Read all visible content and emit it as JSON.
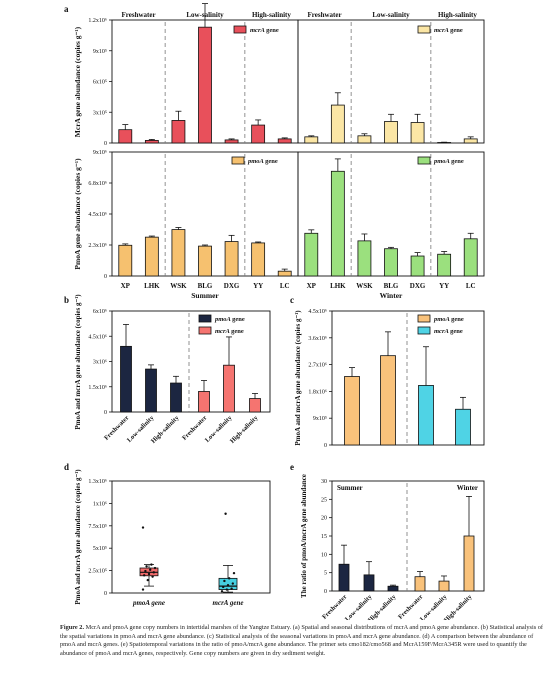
{
  "figure": {
    "caption": {
      "label": "Figure 2.",
      "text": "McrA and pmoA gene copy numbers in intertidal marshes of the Yangtze Estuary. (a) Spatial and seasonal distributions of mcrA and pmoA gene abundance. (b) Statistical analysis of the spatial variations in pmoA and mcrA gene abundance. (c) Statistical analysis of the seasonal variations in pmoA and mcrA gene abundance. (d) A comparison between the abundance of pmoA and mcrA genes. (e) Spatiotemporal variations in the ratio of pmoA/mcrA gene abundance. The primer sets cmo182/cmo568 and McrA159F/McrA345R were used to quantify the abundance of pmoA and mcrA genes, respectively. Gene copy numbers are given in dry sediment weight."
    },
    "colors": {
      "mcrA_summer": "#e8505b",
      "mcrA_winter": "#fbe6a5",
      "pmoA_summer": "#f6c16f",
      "pmoA_winter": "#9be07e",
      "navy": "#1c2641",
      "salmon": "#f57470",
      "cyan": "#4fd3e5",
      "pink_box": "#f06a6a",
      "cyan_box": "#46cfe0",
      "orange_c": "#f9c27b"
    }
  },
  "chart_data": [
    {
      "panel": "a",
      "type": "bar",
      "subpanel": "mcrA summer",
      "categories": [
        "XP",
        "LHK",
        "WSK",
        "BLG",
        "DXG",
        "YY",
        "LC"
      ],
      "values": [
        130000,
        25000,
        220000,
        1130000,
        30000,
        175000,
        40000
      ],
      "errors": [
        50000,
        10000,
        90000,
        230000,
        10000,
        50000,
        10000
      ],
      "series_name": "mcrA gene",
      "ylabel": "McrA gene abundance (copies g⁻¹)",
      "yticks": [
        "0",
        "3x10⁵",
        "6x10⁵",
        "9x10⁵",
        "1.2x10⁶"
      ],
      "ylim": [
        0,
        1200000
      ],
      "group_labels": [
        "Freshwater",
        "Low-salinity",
        "High-salinity"
      ]
    },
    {
      "panel": "a",
      "type": "bar",
      "subpanel": "mcrA winter",
      "categories": [
        "XP",
        "LHK",
        "WSK",
        "BLG",
        "DXG",
        "YY",
        "LC"
      ],
      "values": [
        60000,
        370000,
        70000,
        210000,
        200000,
        5000,
        40000
      ],
      "errors": [
        10000,
        120000,
        20000,
        70000,
        80000,
        3000,
        20000
      ],
      "series_name": "mcrA gene",
      "ylim": [
        0,
        1200000
      ],
      "group_labels": [
        "Freshwater",
        "Low-salinity",
        "High-salinity"
      ]
    },
    {
      "panel": "a",
      "type": "bar",
      "subpanel": "pmoA summer",
      "categories": [
        "XP",
        "LHK",
        "WSK",
        "BLG",
        "DXG",
        "YY",
        "LC"
      ],
      "values": [
        2230000,
        2820000,
        3370000,
        2170000,
        2500000,
        2400000,
        350000
      ],
      "errors": [
        100000,
        80000,
        150000,
        80000,
        450000,
        70000,
        150000
      ],
      "series_name": "pmoA gene",
      "ylabel": "PmoA gene abundance (copies g⁻¹)",
      "yticks": [
        "0",
        "2.3x10⁶",
        "4.5x10⁶",
        "6.8x10⁶",
        "9x10⁶"
      ],
      "ylim": [
        0,
        9000000
      ],
      "xlabel": "Summer"
    },
    {
      "panel": "a",
      "type": "bar",
      "subpanel": "pmoA winter",
      "categories": [
        "XP",
        "LHK",
        "WSK",
        "BLG",
        "DXG",
        "YY",
        "LC"
      ],
      "values": [
        3100000,
        7600000,
        2550000,
        1980000,
        1450000,
        1580000,
        2700000
      ],
      "errors": [
        250000,
        900000,
        500000,
        100000,
        250000,
        200000,
        400000
      ],
      "series_name": "pmoA gene",
      "ylim": [
        0,
        9000000
      ],
      "xlabel": "Winter"
    },
    {
      "panel": "b",
      "type": "bar",
      "categories": [
        "Freshwater",
        "Low-salinity",
        "High-salinity",
        "Freshwater",
        "Low-salinity",
        "High-salinity"
      ],
      "values": [
        3900000,
        2550000,
        1720000,
        1220000,
        2780000,
        800000
      ],
      "errors": [
        1300000,
        250000,
        400000,
        650000,
        1680000,
        300000
      ],
      "series": [
        {
          "name": "pmoA gene",
          "indices": [
            0,
            1,
            2
          ]
        },
        {
          "name": "mcrA gene",
          "indices": [
            3,
            4,
            5
          ]
        }
      ],
      "ylabel": "PmoA and mcrA gene abundance (copies g⁻¹)",
      "yticks": [
        "0",
        "1.5x10⁶",
        "3x10⁶",
        "4.5x10⁶",
        "6x10⁶"
      ],
      "ylim": [
        0,
        6000000
      ]
    },
    {
      "panel": "c",
      "type": "bar",
      "values": [
        2300000,
        3000000,
        2000000,
        1200000
      ],
      "errors": [
        300000,
        800000,
        1300000,
        400000
      ],
      "series": [
        {
          "name": "pmoA gene",
          "indices": [
            0,
            1
          ]
        },
        {
          "name": "mcrA gene",
          "indices": [
            2,
            3
          ]
        }
      ],
      "ylabel": "PmoA and mcrA gene abundance (copies g⁻¹)",
      "yticks": [
        "0",
        "9x10⁵",
        "1.8x10⁶",
        "2.7x10⁶",
        "3.6x10⁶",
        "4.5x10⁶"
      ],
      "ylim": [
        0,
        4500000
      ]
    },
    {
      "panel": "d",
      "type": "box",
      "categories": [
        "pmoA gene",
        "mcrA gene"
      ],
      "boxes": [
        {
          "min": 80000,
          "q1": 200000,
          "median": 240000,
          "q3": 290000,
          "max": 330000,
          "points": [
            40000,
            150000,
            190000,
            205000,
            220000,
            240000,
            255000,
            270000,
            290000,
            310000,
            330000,
            760000
          ]
        },
        {
          "min": 10000,
          "q1": 40000,
          "median": 80000,
          "q3": 170000,
          "max": 320000,
          "points": [
            20000,
            40000,
            50000,
            70000,
            90000,
            110000,
            140000,
            170000,
            230000,
            920000
          ]
        }
      ],
      "ylabel": "PmoA and mcrA gene abundance (copies g⁻¹)",
      "yticks": [
        "0",
        "2.5x10⁵",
        "5x10⁵",
        "7.5x10⁵",
        "1x10⁶",
        "1.3x10⁶"
      ],
      "ylim": [
        0,
        1300000
      ]
    },
    {
      "panel": "e",
      "type": "bar",
      "categories": [
        "Freshwater",
        "Low-salinity",
        "High-salinity",
        "Freshwater",
        "Low-salinity",
        "High-salinity"
      ],
      "values": [
        7.3,
        4.4,
        1.3,
        3.9,
        2.7,
        15.0
      ],
      "errors": [
        5.2,
        3.6,
        0.3,
        1.4,
        1.4,
        10.8
      ],
      "ylabel": "The ratio of pmoA/mcrA gene abundance",
      "yticks": [
        "0",
        "5",
        "10",
        "15",
        "20",
        "25",
        "30"
      ],
      "ylim": [
        0,
        30
      ],
      "group_labels": [
        "Summer",
        "Winter"
      ]
    }
  ]
}
